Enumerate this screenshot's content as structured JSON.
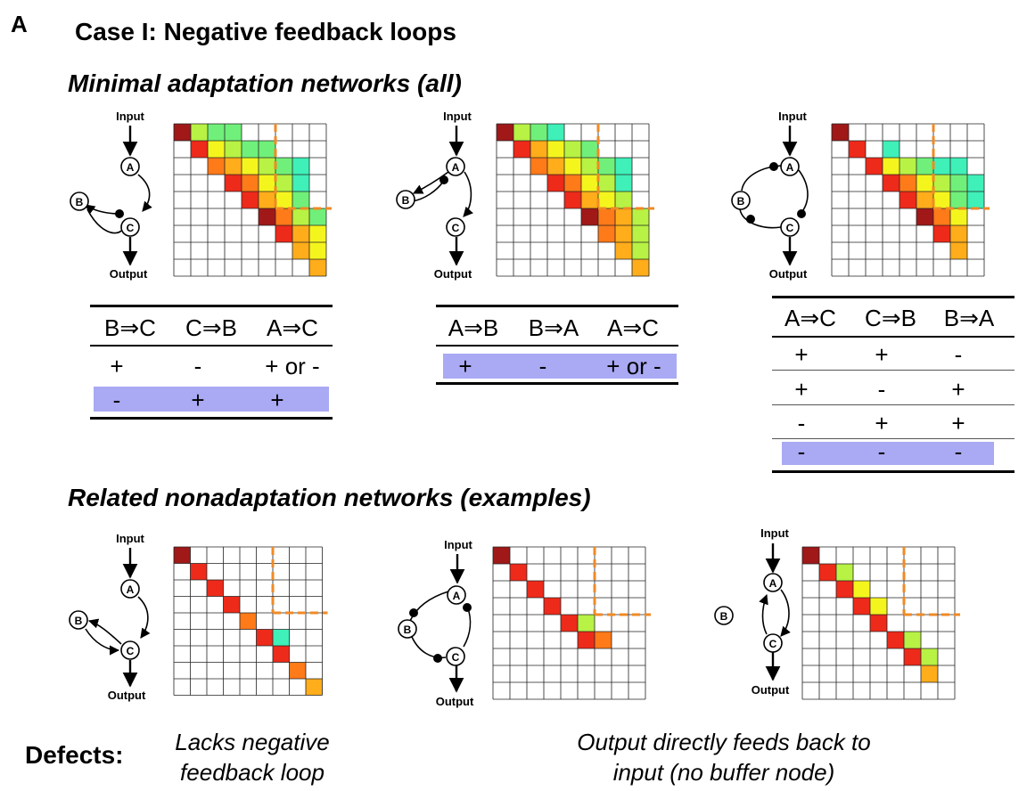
{
  "panel_letter": "A",
  "case_title": "Case I: Negative feedback loops",
  "section_minimal": {
    "prefix": "Minimal adaptation networks (",
    "emph": "all",
    "suffix": ")"
  },
  "section_related": "Related nonadaptation networks (examples)",
  "node_labels": {
    "input": "Input",
    "output": "Output",
    "a": "A",
    "b": "B",
    "c": "C"
  },
  "tables": [
    {
      "headers": [
        "B⇒C",
        "C⇒B",
        "A⇒C"
      ],
      "rows": [
        [
          "+",
          "-",
          "+ or -"
        ],
        [
          "-",
          "+",
          "+"
        ]
      ],
      "highlight_row": 1
    },
    {
      "headers": [
        "A⇒B",
        "B⇒A",
        "A⇒C"
      ],
      "rows": [
        [
          "+",
          "-",
          "+ or -"
        ]
      ],
      "highlight_row": 0
    },
    {
      "headers": [
        "A⇒C",
        "C⇒B",
        "B⇒A"
      ],
      "rows": [
        [
          "+",
          "+",
          "-"
        ],
        [
          "+",
          "-",
          "+"
        ],
        [
          "-",
          "+",
          "+"
        ],
        [
          "-",
          "-",
          "-"
        ]
      ],
      "highlight_row": 3
    }
  ],
  "defects": {
    "label": "Defects:",
    "left_line1": "Lacks negative",
    "left_line2": "feedback loop",
    "right_line1": "Output directly feeds back to",
    "right_line2": "input (no buffer node)"
  },
  "colors": {
    "highlight": "#a9a9f4",
    "dashed_line": "#f08a24",
    "heat_dark": "#a01818",
    "heat_red": "#ee2a1a",
    "heat_orange": "#ff7a18",
    "heat_amber": "#ffad1a",
    "heat_yellow": "#f5f51e",
    "heat_lime": "#b7f244",
    "heat_green": "#70f07a",
    "heat_teal": "#3ff0b8"
  },
  "heatmaps": [
    {
      "name": "heatmap-minimal-1",
      "cells": [
        [
          0,
          0,
          "heat_dark"
        ],
        [
          0,
          1,
          "heat_lime"
        ],
        [
          0,
          2,
          "heat_green"
        ],
        [
          0,
          3,
          "heat_green"
        ],
        [
          1,
          1,
          "heat_red"
        ],
        [
          1,
          2,
          "heat_yellow"
        ],
        [
          1,
          3,
          "heat_lime"
        ],
        [
          1,
          4,
          "heat_green"
        ],
        [
          1,
          5,
          "heat_green"
        ],
        [
          2,
          2,
          "heat_orange"
        ],
        [
          2,
          3,
          "heat_amber"
        ],
        [
          2,
          4,
          "heat_yellow"
        ],
        [
          2,
          5,
          "heat_lime"
        ],
        [
          2,
          6,
          "heat_green"
        ],
        [
          2,
          7,
          "heat_teal"
        ],
        [
          3,
          3,
          "heat_red"
        ],
        [
          3,
          4,
          "heat_orange"
        ],
        [
          3,
          5,
          "heat_yellow"
        ],
        [
          3,
          6,
          "heat_lime"
        ],
        [
          3,
          7,
          "heat_teal"
        ],
        [
          4,
          4,
          "heat_red"
        ],
        [
          4,
          5,
          "heat_amber"
        ],
        [
          4,
          6,
          "heat_yellow"
        ],
        [
          4,
          7,
          "heat_green"
        ],
        [
          5,
          5,
          "heat_dark"
        ],
        [
          5,
          6,
          "heat_orange"
        ],
        [
          5,
          7,
          "heat_lime"
        ],
        [
          5,
          8,
          "heat_green"
        ],
        [
          6,
          6,
          "heat_red"
        ],
        [
          6,
          7,
          "heat_amber"
        ],
        [
          6,
          8,
          "heat_yellow"
        ],
        [
          7,
          7,
          "heat_amber"
        ],
        [
          7,
          8,
          "heat_yellow"
        ],
        [
          8,
          8,
          "heat_amber"
        ]
      ],
      "dash_col": 6,
      "dash_row": 5
    },
    {
      "name": "heatmap-minimal-2",
      "cells": [
        [
          0,
          0,
          "heat_dark"
        ],
        [
          0,
          1,
          "heat_lime"
        ],
        [
          0,
          2,
          "heat_green"
        ],
        [
          0,
          3,
          "heat_teal"
        ],
        [
          1,
          1,
          "heat_red"
        ],
        [
          1,
          2,
          "heat_amber"
        ],
        [
          1,
          3,
          "heat_yellow"
        ],
        [
          1,
          4,
          "heat_lime"
        ],
        [
          1,
          5,
          "heat_green"
        ],
        [
          2,
          2,
          "heat_orange"
        ],
        [
          2,
          3,
          "heat_amber"
        ],
        [
          2,
          4,
          "heat_yellow"
        ],
        [
          2,
          5,
          "heat_lime"
        ],
        [
          2,
          6,
          "heat_green"
        ],
        [
          2,
          7,
          "heat_teal"
        ],
        [
          3,
          3,
          "heat_red"
        ],
        [
          3,
          4,
          "heat_orange"
        ],
        [
          3,
          5,
          "heat_yellow"
        ],
        [
          3,
          6,
          "heat_lime"
        ],
        [
          3,
          7,
          "heat_teal"
        ],
        [
          4,
          4,
          "heat_red"
        ],
        [
          4,
          5,
          "heat_amber"
        ],
        [
          4,
          6,
          "heat_yellow"
        ],
        [
          4,
          7,
          "heat_lime"
        ],
        [
          5,
          5,
          "heat_dark"
        ],
        [
          5,
          6,
          "heat_orange"
        ],
        [
          5,
          7,
          "heat_amber"
        ],
        [
          5,
          8,
          "heat_lime"
        ],
        [
          6,
          6,
          "heat_orange"
        ],
        [
          6,
          7,
          "heat_amber"
        ],
        [
          6,
          8,
          "heat_lime"
        ],
        [
          7,
          7,
          "heat_amber"
        ],
        [
          7,
          8,
          "heat_lime"
        ],
        [
          8,
          8,
          "heat_amber"
        ]
      ],
      "dash_col": 6,
      "dash_row": 5
    },
    {
      "name": "heatmap-minimal-3",
      "cells": [
        [
          0,
          0,
          "heat_dark"
        ],
        [
          1,
          1,
          "heat_red"
        ],
        [
          1,
          3,
          "heat_teal"
        ],
        [
          2,
          2,
          "heat_red"
        ],
        [
          2,
          3,
          "heat_yellow"
        ],
        [
          2,
          4,
          "heat_lime"
        ],
        [
          2,
          5,
          "heat_green"
        ],
        [
          2,
          6,
          "heat_teal"
        ],
        [
          2,
          7,
          "heat_teal"
        ],
        [
          3,
          3,
          "heat_red"
        ],
        [
          3,
          4,
          "heat_orange"
        ],
        [
          3,
          5,
          "heat_yellow"
        ],
        [
          3,
          6,
          "heat_lime"
        ],
        [
          3,
          7,
          "heat_green"
        ],
        [
          3,
          8,
          "heat_teal"
        ],
        [
          4,
          4,
          "heat_red"
        ],
        [
          4,
          5,
          "heat_amber"
        ],
        [
          4,
          6,
          "heat_yellow"
        ],
        [
          4,
          7,
          "heat_green"
        ],
        [
          4,
          8,
          "heat_teal"
        ],
        [
          5,
          5,
          "heat_dark"
        ],
        [
          5,
          6,
          "heat_orange"
        ],
        [
          5,
          7,
          "heat_yellow"
        ],
        [
          6,
          6,
          "heat_red"
        ],
        [
          6,
          7,
          "heat_amber"
        ],
        [
          7,
          7,
          "heat_amber"
        ]
      ],
      "dash_col": 6,
      "dash_row": 5
    },
    {
      "name": "heatmap-related-1",
      "cells": [
        [
          0,
          0,
          "heat_dark"
        ],
        [
          1,
          1,
          "heat_red"
        ],
        [
          2,
          2,
          "heat_red"
        ],
        [
          3,
          3,
          "heat_red"
        ],
        [
          4,
          4,
          "heat_orange"
        ],
        [
          5,
          5,
          "heat_red"
        ],
        [
          5,
          6,
          "heat_teal"
        ],
        [
          6,
          6,
          "heat_red"
        ],
        [
          7,
          7,
          "heat_orange"
        ],
        [
          8,
          8,
          "heat_amber"
        ]
      ],
      "dash_col": 6,
      "dash_row": 4
    },
    {
      "name": "heatmap-related-2",
      "cells": [
        [
          0,
          0,
          "heat_dark"
        ],
        [
          1,
          1,
          "heat_red"
        ],
        [
          2,
          2,
          "heat_red"
        ],
        [
          3,
          3,
          "heat_red"
        ],
        [
          4,
          4,
          "heat_red"
        ],
        [
          4,
          5,
          "heat_lime"
        ],
        [
          5,
          5,
          "heat_red"
        ],
        [
          5,
          6,
          "heat_orange"
        ]
      ],
      "dash_col": 6,
      "dash_row": 4
    },
    {
      "name": "heatmap-related-3",
      "cells": [
        [
          0,
          0,
          "heat_dark"
        ],
        [
          1,
          1,
          "heat_red"
        ],
        [
          1,
          2,
          "heat_lime"
        ],
        [
          2,
          2,
          "heat_red"
        ],
        [
          2,
          3,
          "heat_yellow"
        ],
        [
          3,
          3,
          "heat_red"
        ],
        [
          3,
          4,
          "heat_yellow"
        ],
        [
          4,
          4,
          "heat_red"
        ],
        [
          5,
          5,
          "heat_red"
        ],
        [
          5,
          6,
          "heat_lime"
        ],
        [
          6,
          6,
          "heat_red"
        ],
        [
          6,
          7,
          "heat_lime"
        ],
        [
          7,
          7,
          "heat_amber"
        ]
      ],
      "dash_col": 6,
      "dash_row": 4
    }
  ]
}
